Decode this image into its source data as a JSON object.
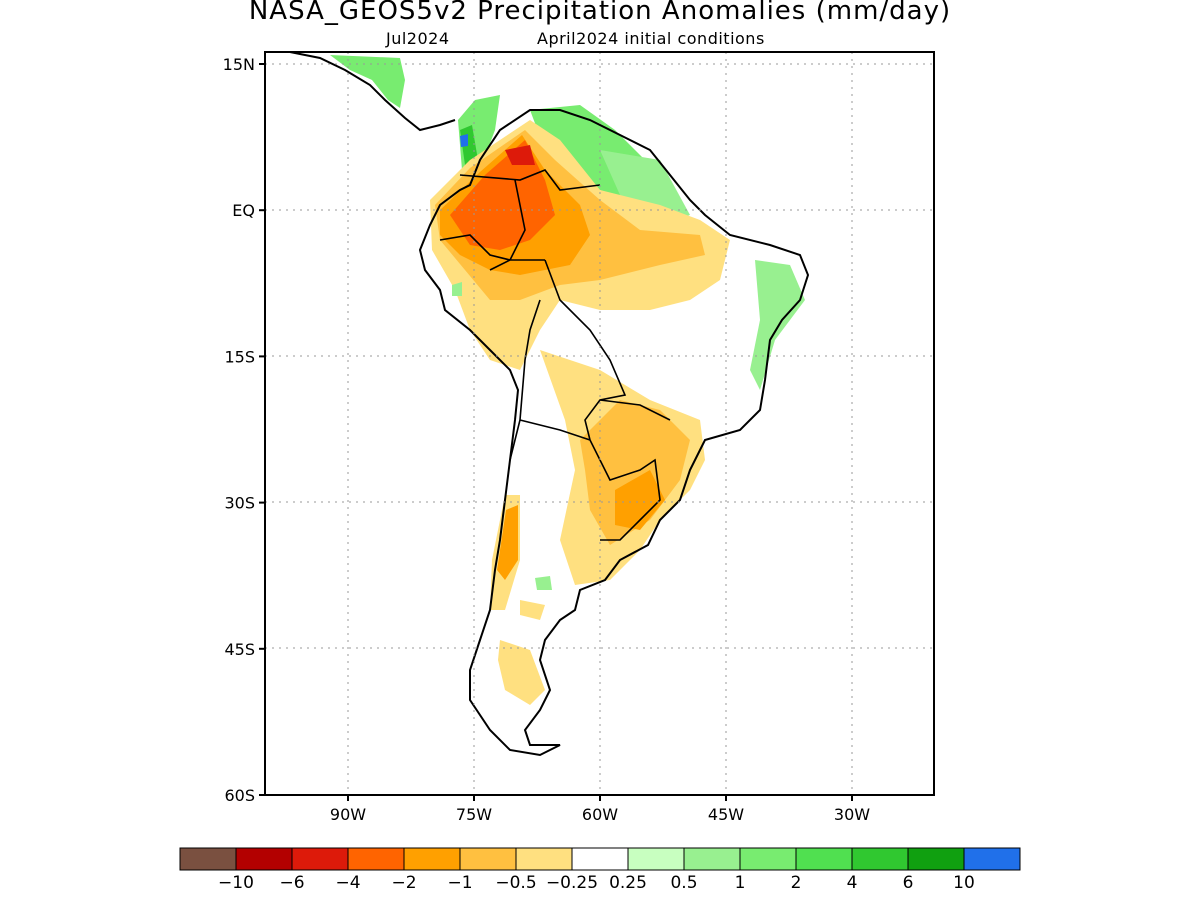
{
  "title": "NASA_GEOS5v2 Precipitation Anomalies (mm/day)",
  "subtitle_month": "Jul2024",
  "subtitle_init": "April2024 initial conditions",
  "y_axis": {
    "ticks": [
      {
        "value": 15,
        "label": "15N"
      },
      {
        "value": 0,
        "label": "EQ"
      },
      {
        "value": -15,
        "label": "15S"
      },
      {
        "value": -30,
        "label": "30S"
      },
      {
        "value": -45,
        "label": "45S"
      },
      {
        "value": -60,
        "label": "60S"
      }
    ]
  },
  "x_axis": {
    "ticks": [
      {
        "value": -90,
        "label": "90W"
      },
      {
        "value": -75,
        "label": "75W"
      },
      {
        "value": -60,
        "label": "60W"
      },
      {
        "value": -45,
        "label": "45W"
      },
      {
        "value": -30,
        "label": "30W"
      }
    ]
  },
  "map": {
    "lon_range": [
      -100,
      -20
    ],
    "lat_range": [
      -60,
      15
    ],
    "grid": "dotted",
    "region": "South America"
  },
  "colorbar": {
    "colors": [
      "#7a5040",
      "#b30000",
      "#dd1a0a",
      "#ff6400",
      "#ffa000",
      "#ffc040",
      "#ffe080",
      "#ffffff",
      "#c8ffc0",
      "#98f090",
      "#78ec70",
      "#50e050",
      "#30c830",
      "#10a010",
      "#2070ea"
    ],
    "labels": [
      "−10",
      "−6",
      "−4",
      "−2",
      "−1",
      "−0.5",
      "−0.25",
      "0.25",
      "0.5",
      "1",
      "2",
      "4",
      "6",
      "10"
    ]
  },
  "anomaly_regions": [
    {
      "name": "Northwestern Amazon / Colombia",
      "category": "-4 to -6",
      "color": "#dd1a0a"
    },
    {
      "name": "Western Amazon / Peru",
      "category": "-2 to -4",
      "color": "#ff6400"
    },
    {
      "name": "Central Amazon",
      "category": "-1 to -2",
      "color": "#ffa000"
    },
    {
      "name": "Venezuela / Guianas",
      "category": "+0.5 to +2",
      "color": "#78ec70"
    },
    {
      "name": "Northeast Brazil coast",
      "category": "+0.25 to +1",
      "color": "#98f090"
    },
    {
      "name": "Southern Brazil / Paraguay / Uruguay",
      "category": "-0.5 to -2",
      "color": "#ffc040"
    },
    {
      "name": "Central Chile",
      "category": "-1 to -2",
      "color": "#ffa000"
    },
    {
      "name": "Patagonia",
      "category": "-0.25 to -0.5",
      "color": "#ffe080"
    }
  ]
}
